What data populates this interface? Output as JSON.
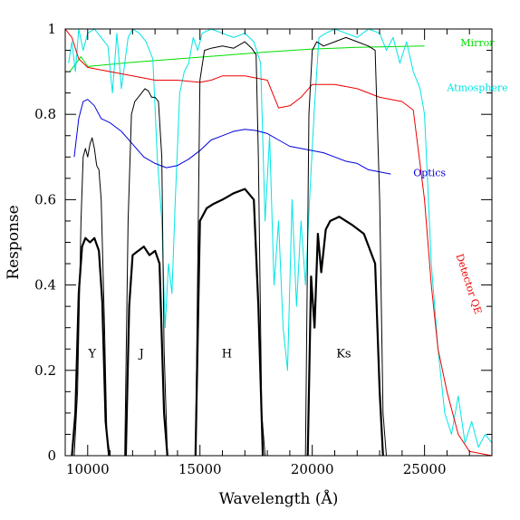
{
  "chart_data": {
    "type": "line",
    "title": "",
    "xlabel": "Wavelength (Å)",
    "ylabel": "Response",
    "xlim": [
      9000,
      28000
    ],
    "ylim": [
      0,
      1
    ],
    "grid": false,
    "legend": "none",
    "x_ticks": [
      10000,
      15000,
      20000,
      25000
    ],
    "y_ticks": [
      0,
      0.2,
      0.4,
      0.6,
      0.8,
      1
    ],
    "x_tick_labels": [
      "10000",
      "15000",
      "20000",
      "25000"
    ],
    "y_tick_labels": [
      "0",
      "0.2",
      "0.4",
      "0.6",
      "0.8",
      "1"
    ],
    "annotations": [
      {
        "text": "Y",
        "x": 10200,
        "y": 0.23
      },
      {
        "text": "J",
        "x": 12400,
        "y": 0.23
      },
      {
        "text": "H",
        "x": 16200,
        "y": 0.23
      },
      {
        "text": "Ks",
        "x": 21400,
        "y": 0.23
      }
    ],
    "series": [
      {
        "name": "Mirror",
        "color": "#00dd00",
        "label_x": 26600,
        "label_y": 0.96,
        "x": [
          9200,
          9700,
          10000,
          12000,
          15000,
          18000,
          20000,
          22000,
          25000
        ],
        "y": [
          0.9,
          0.935,
          0.912,
          0.922,
          0.934,
          0.946,
          0.953,
          0.957,
          0.96
        ]
      },
      {
        "name": "Atmosphere",
        "color": "#00e5e5",
        "label_x": 26000,
        "label_y": 0.855,
        "x": [
          9150,
          9300,
          9450,
          9600,
          9800,
          10000,
          10300,
          10600,
          10900,
          11100,
          11300,
          11500,
          11650,
          11800,
          12000,
          12300,
          12600,
          12900,
          13100,
          13300,
          13450,
          13600,
          13750,
          13900,
          14100,
          14300,
          14500,
          14700,
          14900,
          15100,
          15500,
          16000,
          16500,
          17000,
          17400,
          17700,
          17900,
          18100,
          18300,
          18500,
          18700,
          18900,
          19100,
          19300,
          19500,
          19700,
          19900,
          20100,
          20300,
          20600,
          21000,
          21500,
          22000,
          22500,
          23000,
          23300,
          23600,
          23900,
          24200,
          24500,
          24800,
          25000,
          25300,
          25600,
          25900,
          26200,
          26500,
          26800,
          27100,
          27400,
          27700,
          28000
        ],
        "y": [
          0.92,
          0.97,
          0.9,
          1.0,
          0.95,
          0.99,
          1.0,
          0.98,
          0.96,
          0.85,
          0.99,
          0.86,
          0.92,
          0.98,
          1.0,
          0.99,
          0.97,
          0.93,
          0.7,
          0.55,
          0.3,
          0.45,
          0.38,
          0.6,
          0.85,
          0.9,
          0.92,
          0.98,
          0.95,
          0.99,
          1.0,
          0.99,
          0.98,
          0.99,
          0.97,
          0.92,
          0.55,
          0.75,
          0.4,
          0.55,
          0.3,
          0.2,
          0.6,
          0.35,
          0.55,
          0.4,
          0.62,
          0.82,
          0.98,
          0.99,
          1.0,
          0.99,
          0.98,
          1.0,
          0.99,
          0.95,
          0.98,
          0.92,
          0.97,
          0.9,
          0.86,
          0.8,
          0.45,
          0.25,
          0.1,
          0.05,
          0.14,
          0.03,
          0.08,
          0.02,
          0.05,
          0.03
        ]
      },
      {
        "name": "Detector QE",
        "color": "#ee0000",
        "label_x": 26400,
        "label_y": 0.47,
        "x": [
          9000,
          9300,
          9600,
          10000,
          10500,
          11000,
          12000,
          13000,
          14000,
          15000,
          15500,
          16000,
          17000,
          18000,
          18500,
          19000,
          19500,
          20000,
          21000,
          22000,
          23000,
          24000,
          24500,
          25000,
          25300,
          25600,
          26000,
          26500,
          27000,
          28000
        ],
        "y": [
          1.0,
          0.98,
          0.93,
          0.91,
          0.905,
          0.9,
          0.89,
          0.88,
          0.88,
          0.875,
          0.88,
          0.89,
          0.89,
          0.88,
          0.815,
          0.82,
          0.84,
          0.87,
          0.87,
          0.86,
          0.84,
          0.83,
          0.81,
          0.6,
          0.4,
          0.25,
          0.15,
          0.05,
          0.01,
          0.0
        ]
      },
      {
        "name": "Optics",
        "color": "#0000dd",
        "label_x": 24500,
        "label_y": 0.655,
        "x": [
          9400,
          9600,
          9800,
          10000,
          10300,
          10600,
          11000,
          11500,
          12000,
          12500,
          13000,
          13500,
          14000,
          14500,
          15000,
          15500,
          16000,
          16500,
          17000,
          17500,
          18000,
          18500,
          19000,
          19500,
          20000,
          20500,
          21000,
          21500,
          22000,
          22500,
          23000,
          23500
        ],
        "y": [
          0.7,
          0.79,
          0.83,
          0.835,
          0.82,
          0.79,
          0.78,
          0.76,
          0.73,
          0.7,
          0.685,
          0.675,
          0.68,
          0.695,
          0.715,
          0.74,
          0.75,
          0.76,
          0.765,
          0.762,
          0.755,
          0.74,
          0.725,
          0.72,
          0.715,
          0.71,
          0.7,
          0.69,
          0.685,
          0.67,
          0.665,
          0.66
        ]
      },
      {
        "name": "Y (thin)",
        "color": "#000000",
        "x": [
          9400,
          9550,
          9700,
          9800,
          9900,
          10000,
          10100,
          10200,
          10300,
          10400,
          10500,
          10600,
          10750,
          10850,
          11000
        ],
        "y": [
          0.0,
          0.15,
          0.55,
          0.7,
          0.72,
          0.7,
          0.73,
          0.745,
          0.72,
          0.68,
          0.67,
          0.6,
          0.3,
          0.05,
          0.0
        ]
      },
      {
        "name": "J (thin)",
        "color": "#000000",
        "x": [
          11650,
          11800,
          11950,
          12100,
          12250,
          12400,
          12550,
          12700,
          12850,
          13000,
          13150,
          13300,
          13400,
          13550
        ],
        "y": [
          0.0,
          0.55,
          0.8,
          0.83,
          0.84,
          0.85,
          0.86,
          0.855,
          0.84,
          0.84,
          0.83,
          0.7,
          0.25,
          0.0
        ],
        "label": ""
      },
      {
        "name": "H (thin)",
        "color": "#000000",
        "x": [
          14800,
          15000,
          15200,
          15500,
          16000,
          16500,
          17000,
          17300,
          17500,
          17600,
          17750,
          17900
        ],
        "y": [
          0.0,
          0.88,
          0.95,
          0.955,
          0.96,
          0.955,
          0.97,
          0.955,
          0.94,
          0.7,
          0.1,
          0.0
        ]
      },
      {
        "name": "Ks (thin)",
        "color": "#000000",
        "x": [
          19700,
          19850,
          20000,
          20200,
          20500,
          21000,
          21500,
          22000,
          22500,
          22800,
          23000,
          23150,
          23300
        ],
        "y": [
          0.0,
          0.8,
          0.95,
          0.97,
          0.96,
          0.97,
          0.98,
          0.97,
          0.96,
          0.95,
          0.6,
          0.1,
          0.0
        ]
      },
      {
        "name": "Y (total)",
        "color": "#000000",
        "thick": true,
        "x": [
          9300,
          9450,
          9600,
          9750,
          9900,
          10100,
          10300,
          10500,
          10650,
          10800,
          10950
        ],
        "y": [
          0.0,
          0.1,
          0.38,
          0.49,
          0.51,
          0.5,
          0.51,
          0.48,
          0.36,
          0.08,
          0.0
        ]
      },
      {
        "name": "J (total)",
        "color": "#000000",
        "thick": true,
        "x": [
          11700,
          11850,
          12000,
          12250,
          12500,
          12750,
          13000,
          13200,
          13400,
          13550
        ],
        "y": [
          0.0,
          0.35,
          0.47,
          0.48,
          0.49,
          0.47,
          0.48,
          0.45,
          0.1,
          0.0
        ]
      },
      {
        "name": "H (total)",
        "color": "#000000",
        "thick": true,
        "x": [
          14800,
          15000,
          15300,
          15600,
          16000,
          16500,
          17000,
          17400,
          17600,
          17800
        ],
        "y": [
          0.0,
          0.55,
          0.58,
          0.59,
          0.6,
          0.615,
          0.625,
          0.6,
          0.35,
          0.0
        ]
      },
      {
        "name": "Ks (total)",
        "color": "#000000",
        "thick": true,
        "x": [
          19800,
          19950,
          20100,
          20250,
          20400,
          20600,
          20800,
          21200,
          21800,
          22300,
          22800,
          23000,
          23150
        ],
        "y": [
          0.0,
          0.42,
          0.3,
          0.52,
          0.43,
          0.53,
          0.55,
          0.56,
          0.54,
          0.52,
          0.45,
          0.15,
          0.0
        ]
      }
    ]
  }
}
